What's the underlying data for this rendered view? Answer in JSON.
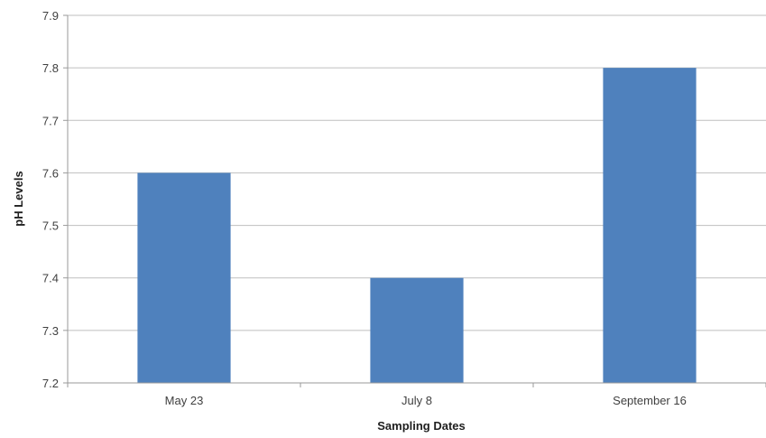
{
  "chart_data": {
    "type": "bar",
    "categories": [
      "May 23",
      "July 8",
      "September 16"
    ],
    "values": [
      7.6,
      7.4,
      7.8
    ],
    "xlabel": "Sampling Dates",
    "ylabel": "pH Levels",
    "ylim": [
      7.2,
      7.9
    ],
    "yticks": [
      "7.2",
      "7.3",
      "7.4",
      "7.5",
      "7.6",
      "7.7",
      "7.8",
      "7.9"
    ],
    "grid": true,
    "legend": "none",
    "bar_color": "#4F81BD",
    "gridline_color": "#BFBFBF",
    "axis_color": "#9A9A9A"
  }
}
